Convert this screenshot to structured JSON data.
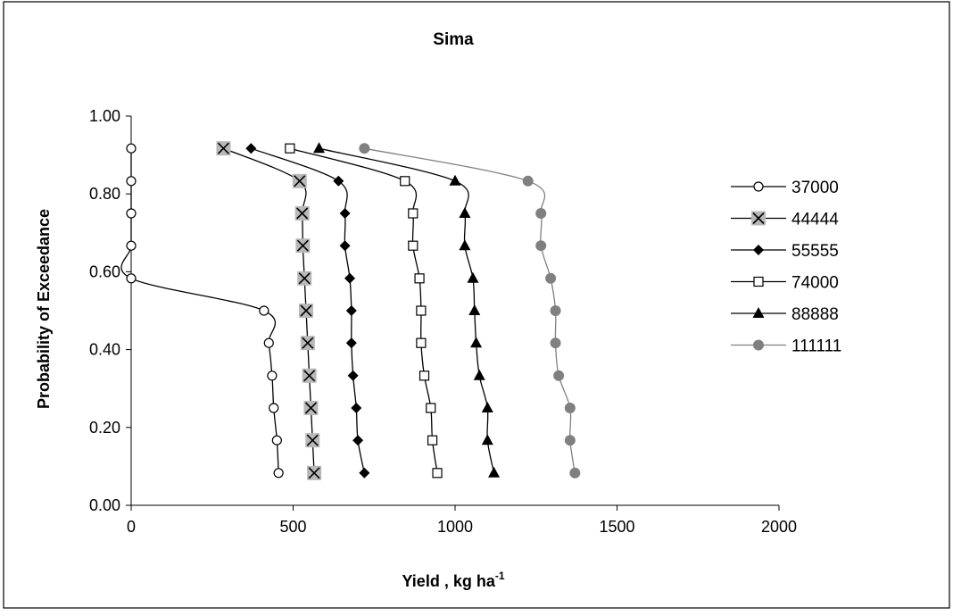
{
  "chart_data": {
    "type": "line",
    "title": "Sima",
    "xlabel": "Yield , kg ha",
    "xlabel_sup": "-1",
    "ylabel": "Probability of Exceedance",
    "xlim": [
      0,
      2000
    ],
    "ylim": [
      0,
      1
    ],
    "x_ticks": [
      "0",
      "500",
      "1000",
      "1500",
      "2000"
    ],
    "x_tick_values": [
      0,
      500,
      1000,
      1500,
      2000
    ],
    "y_ticks": [
      "0.00",
      "0.20",
      "0.40",
      "0.60",
      "0.80",
      "1.00"
    ],
    "y_tick_values": [
      0,
      0.2,
      0.4,
      0.6,
      0.8,
      1.0
    ],
    "grid": false,
    "legend_position": "right",
    "series": [
      {
        "name": "37000",
        "marker": "circle-open",
        "color": "#000000",
        "x": [
          0,
          0,
          0,
          0,
          0,
          410,
          425,
          435,
          440,
          450,
          455
        ],
        "y": [
          0.917,
          0.833,
          0.75,
          0.667,
          0.583,
          0.5,
          0.417,
          0.333,
          0.25,
          0.167,
          0.083
        ]
      },
      {
        "name": "44444",
        "marker": "x-square",
        "color": "#000000",
        "x": [
          285,
          520,
          528,
          530,
          535,
          540,
          545,
          550,
          555,
          560,
          565
        ],
        "y": [
          0.917,
          0.833,
          0.75,
          0.667,
          0.583,
          0.5,
          0.417,
          0.333,
          0.25,
          0.167,
          0.083
        ]
      },
      {
        "name": "55555",
        "marker": "diamond-filled",
        "color": "#000000",
        "x": [
          370,
          640,
          660,
          660,
          675,
          680,
          680,
          685,
          695,
          700,
          720
        ],
        "y": [
          0.917,
          0.833,
          0.75,
          0.667,
          0.583,
          0.5,
          0.417,
          0.333,
          0.25,
          0.167,
          0.083
        ]
      },
      {
        "name": "74000",
        "marker": "square-open",
        "color": "#000000",
        "x": [
          490,
          845,
          870,
          870,
          890,
          895,
          895,
          905,
          925,
          930,
          945
        ],
        "y": [
          0.917,
          0.833,
          0.75,
          0.667,
          0.583,
          0.5,
          0.417,
          0.333,
          0.25,
          0.167,
          0.083
        ]
      },
      {
        "name": "88888",
        "marker": "triangle-filled",
        "color": "#000000",
        "x": [
          580,
          1000,
          1030,
          1030,
          1055,
          1060,
          1065,
          1075,
          1100,
          1100,
          1120
        ],
        "y": [
          0.917,
          0.833,
          0.75,
          0.667,
          0.583,
          0.5,
          0.417,
          0.333,
          0.25,
          0.167,
          0.083
        ]
      },
      {
        "name": "111111",
        "marker": "circle-filled",
        "color": "#808080",
        "x": [
          720,
          1225,
          1265,
          1265,
          1295,
          1310,
          1310,
          1320,
          1355,
          1355,
          1370
        ],
        "y": [
          0.917,
          0.833,
          0.75,
          0.667,
          0.583,
          0.5,
          0.417,
          0.333,
          0.25,
          0.167,
          0.083
        ]
      }
    ]
  }
}
